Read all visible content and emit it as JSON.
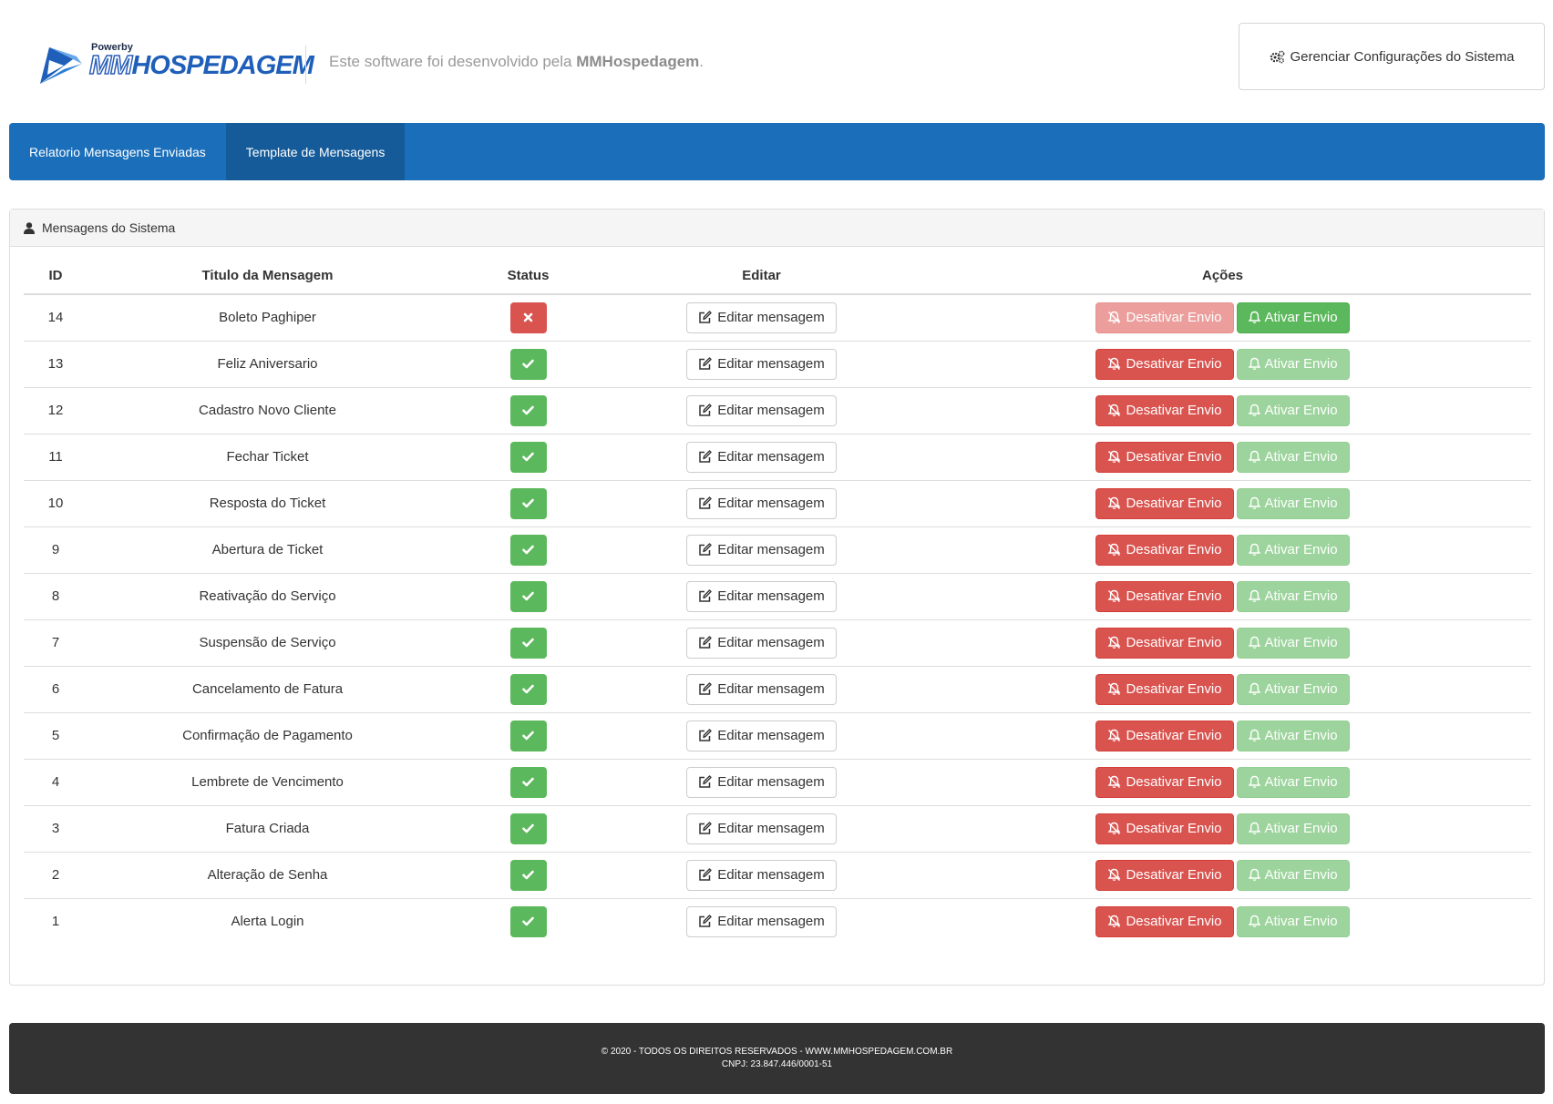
{
  "header": {
    "logo_powerby": "Powerby",
    "logo_mm": "MM",
    "logo_hosp": "HOSPEDAGEM",
    "tagline_prefix": "Este software foi desenvolvido pela ",
    "tagline_brand": "MMHospedagem",
    "tagline_suffix": ".",
    "config_button": "Gerenciar Configurações do Sistema",
    "brand_color": "#1f5fb9"
  },
  "nav": {
    "items": [
      {
        "label": "Relatorio Mensagens Enviadas"
      },
      {
        "label": "Template de Mensagens"
      }
    ]
  },
  "panel": {
    "title": "Mensagens do Sistema",
    "columns": {
      "id": "ID",
      "title": "Titulo da Mensagem",
      "status": "Status",
      "edit": "Editar",
      "actions": "Ações"
    },
    "edit_label": "Editar mensagem",
    "deactivate_label": "Desativar Envio",
    "activate_label": "Ativar Envio",
    "rows": [
      {
        "id": "14",
        "title": "Boleto Paghiper",
        "status": "inactive"
      },
      {
        "id": "13",
        "title": "Feliz Aniversario",
        "status": "active"
      },
      {
        "id": "12",
        "title": "Cadastro Novo Cliente",
        "status": "active"
      },
      {
        "id": "11",
        "title": "Fechar Ticket",
        "status": "active"
      },
      {
        "id": "10",
        "title": "Resposta do Ticket",
        "status": "active"
      },
      {
        "id": "9",
        "title": "Abertura de Ticket",
        "status": "active"
      },
      {
        "id": "8",
        "title": "Reativação do Serviço",
        "status": "active"
      },
      {
        "id": "7",
        "title": "Suspensão de Serviço",
        "status": "active"
      },
      {
        "id": "6",
        "title": "Cancelamento de Fatura",
        "status": "active"
      },
      {
        "id": "5",
        "title": "Confirmação de Pagamento",
        "status": "active"
      },
      {
        "id": "4",
        "title": "Lembrete de Vencimento",
        "status": "active"
      },
      {
        "id": "3",
        "title": "Fatura Criada",
        "status": "active"
      },
      {
        "id": "2",
        "title": "Alteração de Senha",
        "status": "active"
      },
      {
        "id": "1",
        "title": "Alerta Login",
        "status": "active"
      }
    ]
  },
  "footer": {
    "line1": "© 2020 - TODOS OS DIREITOS RESERVADOS - WWW.MMHOSPEDAGEM.COM.BR",
    "line2": "CNPJ: 23.847.446/0001-51"
  }
}
